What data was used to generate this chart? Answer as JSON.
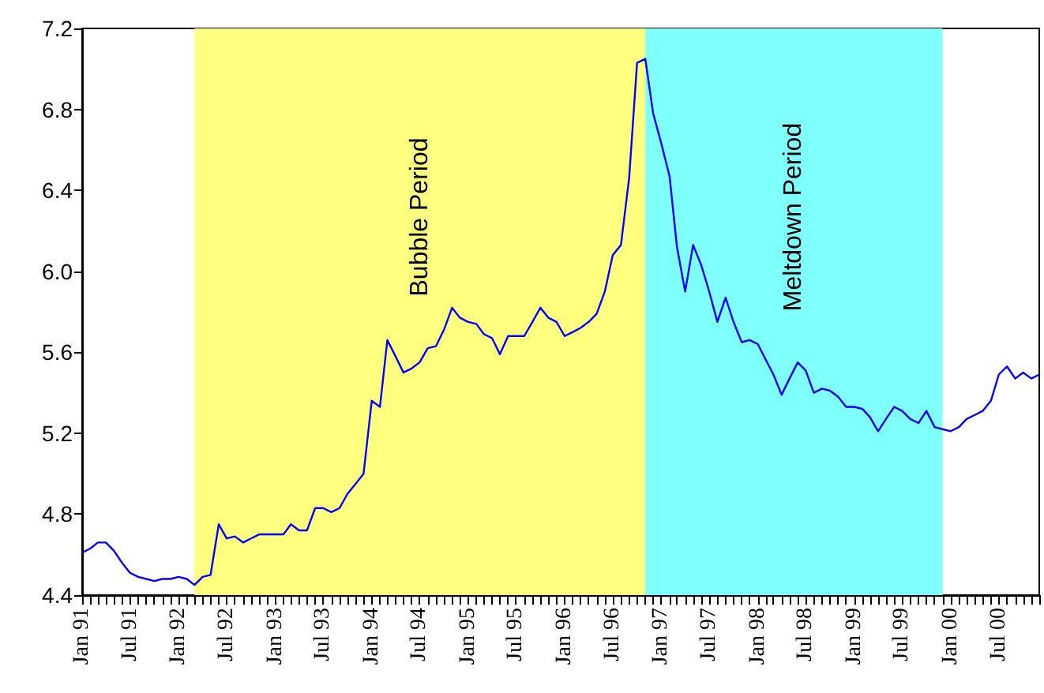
{
  "chart_data": {
    "type": "line",
    "x": [
      "1991-01",
      "1991-02",
      "1991-03",
      "1991-04",
      "1991-05",
      "1991-06",
      "1991-07",
      "1991-08",
      "1991-09",
      "1991-10",
      "1991-11",
      "1991-12",
      "1992-01",
      "1992-02",
      "1992-03",
      "1992-04",
      "1992-05",
      "1992-06",
      "1992-07",
      "1992-08",
      "1992-09",
      "1992-10",
      "1992-11",
      "1992-12",
      "1993-01",
      "1993-02",
      "1993-03",
      "1993-04",
      "1993-05",
      "1993-06",
      "1993-07",
      "1993-08",
      "1993-09",
      "1993-10",
      "1993-11",
      "1993-12",
      "1994-01",
      "1994-02",
      "1994-03",
      "1994-04",
      "1994-05",
      "1994-06",
      "1994-07",
      "1994-08",
      "1994-09",
      "1994-10",
      "1994-11",
      "1994-12",
      "1995-01",
      "1995-02",
      "1995-03",
      "1995-04",
      "1995-05",
      "1995-06",
      "1995-07",
      "1995-08",
      "1995-09",
      "1995-10",
      "1995-11",
      "1995-12",
      "1996-01",
      "1996-02",
      "1996-03",
      "1996-04",
      "1996-05",
      "1996-06",
      "1996-07",
      "1996-08",
      "1996-09",
      "1996-10",
      "1996-11",
      "1996-12",
      "1997-01",
      "1997-02",
      "1997-03",
      "1997-04",
      "1997-05",
      "1997-06",
      "1997-07",
      "1997-08",
      "1997-09",
      "1997-10",
      "1997-11",
      "1997-12",
      "1998-01",
      "1998-02",
      "1998-03",
      "1998-04",
      "1998-05",
      "1998-06",
      "1998-07",
      "1998-08",
      "1998-09",
      "1998-10",
      "1998-11",
      "1998-12",
      "1999-01",
      "1999-02",
      "1999-03",
      "1999-04",
      "1999-05",
      "1999-06",
      "1999-07",
      "1999-08",
      "1999-09",
      "1999-10",
      "1999-11",
      "1999-12",
      "2000-01",
      "2000-02",
      "2000-03",
      "2000-04",
      "2000-05",
      "2000-06",
      "2000-07",
      "2000-08",
      "2000-09",
      "2000-10",
      "2000-11",
      "2000-12"
    ],
    "series": [
      {
        "color": "#0000ff",
        "values": [
          4.61,
          4.63,
          4.66,
          4.66,
          4.62,
          4.56,
          4.51,
          4.49,
          4.48,
          4.47,
          4.48,
          4.48,
          4.49,
          4.48,
          4.45,
          4.49,
          4.5,
          4.75,
          4.68,
          4.69,
          4.66,
          4.68,
          4.7,
          4.7,
          4.7,
          4.7,
          4.75,
          4.72,
          4.72,
          4.83,
          4.83,
          4.81,
          4.83,
          4.9,
          4.95,
          5.0,
          5.36,
          5.33,
          5.66,
          5.58,
          5.5,
          5.52,
          5.55,
          5.62,
          5.63,
          5.71,
          5.82,
          5.77,
          5.75,
          5.74,
          5.69,
          5.67,
          5.59,
          5.68,
          5.68,
          5.68,
          5.75,
          5.82,
          5.77,
          5.75,
          5.68,
          5.7,
          5.72,
          5.75,
          5.79,
          5.9,
          6.08,
          6.13,
          6.46,
          7.03,
          7.05,
          6.78,
          6.63,
          6.47,
          6.12,
          5.9,
          6.13,
          6.03,
          5.9,
          5.75,
          5.87,
          5.75,
          5.65,
          5.66,
          5.64,
          5.56,
          5.49,
          5.39,
          5.47,
          5.55,
          5.51,
          5.4,
          5.42,
          5.41,
          5.38,
          5.33,
          5.33,
          5.32,
          5.28,
          5.21,
          5.27,
          5.33,
          5.31,
          5.27,
          5.25,
          5.31,
          5.23,
          5.22,
          5.21,
          5.23,
          5.27,
          5.29,
          5.31,
          5.36,
          5.49,
          5.53,
          5.47,
          5.5,
          5.47,
          5.49
        ]
      }
    ],
    "xlim": [
      "1991-01",
      "2000-12"
    ],
    "xticks": [
      {
        "value": "1991-01",
        "label": "Jan 91"
      },
      {
        "value": "1991-02",
        "label": null
      },
      {
        "value": "1991-03",
        "label": null
      },
      {
        "value": "1991-04",
        "label": null
      },
      {
        "value": "1991-05",
        "label": null
      },
      {
        "value": "1991-06",
        "label": null
      },
      {
        "value": "1991-07",
        "label": "Jul 91"
      },
      {
        "value": "1991-08",
        "label": null
      },
      {
        "value": "1991-09",
        "label": null
      },
      {
        "value": "1991-10",
        "label": null
      },
      {
        "value": "1991-11",
        "label": null
      },
      {
        "value": "1991-12",
        "label": null
      },
      {
        "value": "1992-01",
        "label": "Jan 92"
      },
      {
        "value": "1992-02",
        "label": null
      },
      {
        "value": "1992-03",
        "label": null
      },
      {
        "value": "1992-04",
        "label": null
      },
      {
        "value": "1992-05",
        "label": null
      },
      {
        "value": "1992-06",
        "label": null
      },
      {
        "value": "1992-07",
        "label": "Jul 92"
      },
      {
        "value": "1992-08",
        "label": null
      },
      {
        "value": "1992-09",
        "label": null
      },
      {
        "value": "1992-10",
        "label": null
      },
      {
        "value": "1992-11",
        "label": null
      },
      {
        "value": "1992-12",
        "label": null
      },
      {
        "value": "1993-01",
        "label": "Jan 93"
      },
      {
        "value": "1993-02",
        "label": null
      },
      {
        "value": "1993-03",
        "label": null
      },
      {
        "value": "1993-04",
        "label": null
      },
      {
        "value": "1993-05",
        "label": null
      },
      {
        "value": "1993-06",
        "label": null
      },
      {
        "value": "1993-07",
        "label": "Jul 93"
      },
      {
        "value": "1993-08",
        "label": null
      },
      {
        "value": "1993-09",
        "label": null
      },
      {
        "value": "1993-10",
        "label": null
      },
      {
        "value": "1993-11",
        "label": null
      },
      {
        "value": "1993-12",
        "label": null
      },
      {
        "value": "1994-01",
        "label": "Jan 94"
      },
      {
        "value": "1994-02",
        "label": null
      },
      {
        "value": "1994-03",
        "label": null
      },
      {
        "value": "1994-04",
        "label": null
      },
      {
        "value": "1994-05",
        "label": null
      },
      {
        "value": "1994-06",
        "label": null
      },
      {
        "value": "1994-07",
        "label": "Jul 94"
      },
      {
        "value": "1994-08",
        "label": null
      },
      {
        "value": "1994-09",
        "label": null
      },
      {
        "value": "1994-10",
        "label": null
      },
      {
        "value": "1994-11",
        "label": null
      },
      {
        "value": "1994-12",
        "label": null
      },
      {
        "value": "1995-01",
        "label": "Jan 95"
      },
      {
        "value": "1995-02",
        "label": null
      },
      {
        "value": "1995-03",
        "label": null
      },
      {
        "value": "1995-04",
        "label": null
      },
      {
        "value": "1995-05",
        "label": null
      },
      {
        "value": "1995-06",
        "label": null
      },
      {
        "value": "1995-07",
        "label": "Jul 95"
      },
      {
        "value": "1995-08",
        "label": null
      },
      {
        "value": "1995-09",
        "label": null
      },
      {
        "value": "1995-10",
        "label": null
      },
      {
        "value": "1995-11",
        "label": null
      },
      {
        "value": "1995-12",
        "label": null
      },
      {
        "value": "1996-01",
        "label": "Jan 96"
      },
      {
        "value": "1996-02",
        "label": null
      },
      {
        "value": "1996-03",
        "label": null
      },
      {
        "value": "1996-04",
        "label": null
      },
      {
        "value": "1996-05",
        "label": null
      },
      {
        "value": "1996-06",
        "label": null
      },
      {
        "value": "1996-07",
        "label": "Jul 96"
      },
      {
        "value": "1996-08",
        "label": null
      },
      {
        "value": "1996-09",
        "label": null
      },
      {
        "value": "1996-10",
        "label": null
      },
      {
        "value": "1996-11",
        "label": null
      },
      {
        "value": "1996-12",
        "label": null
      },
      {
        "value": "1997-01",
        "label": "Jan 97"
      },
      {
        "value": "1997-02",
        "label": null
      },
      {
        "value": "1997-03",
        "label": null
      },
      {
        "value": "1997-04",
        "label": null
      },
      {
        "value": "1997-05",
        "label": null
      },
      {
        "value": "1997-06",
        "label": null
      },
      {
        "value": "1997-07",
        "label": "Jul 97"
      },
      {
        "value": "1997-08",
        "label": null
      },
      {
        "value": "1997-09",
        "label": null
      },
      {
        "value": "1997-10",
        "label": null
      },
      {
        "value": "1997-11",
        "label": null
      },
      {
        "value": "1997-12",
        "label": null
      },
      {
        "value": "1998-01",
        "label": "Jan 98"
      },
      {
        "value": "1998-02",
        "label": null
      },
      {
        "value": "1998-03",
        "label": null
      },
      {
        "value": "1998-04",
        "label": null
      },
      {
        "value": "1998-05",
        "label": null
      },
      {
        "value": "1998-06",
        "label": null
      },
      {
        "value": "1998-07",
        "label": "Jul 98"
      },
      {
        "value": "1998-08",
        "label": null
      },
      {
        "value": "1998-09",
        "label": null
      },
      {
        "value": "1998-10",
        "label": null
      },
      {
        "value": "1998-11",
        "label": null
      },
      {
        "value": "1998-12",
        "label": null
      },
      {
        "value": "1999-01",
        "label": "Jan 99"
      },
      {
        "value": "1999-02",
        "label": null
      },
      {
        "value": "1999-03",
        "label": null
      },
      {
        "value": "1999-04",
        "label": null
      },
      {
        "value": "1999-05",
        "label": null
      },
      {
        "value": "1999-06",
        "label": null
      },
      {
        "value": "1999-07",
        "label": "Jul 99"
      },
      {
        "value": "1999-08",
        "label": null
      },
      {
        "value": "1999-09",
        "label": null
      },
      {
        "value": "1999-10",
        "label": null
      },
      {
        "value": "1999-11",
        "label": null
      },
      {
        "value": "1999-12",
        "label": null
      },
      {
        "value": "2000-01",
        "label": "Jan 00"
      },
      {
        "value": "2000-02",
        "label": null
      },
      {
        "value": "2000-03",
        "label": null
      },
      {
        "value": "2000-04",
        "label": null
      },
      {
        "value": "2000-05",
        "label": null
      },
      {
        "value": "2000-06",
        "label": null
      },
      {
        "value": "2000-07",
        "label": "Jul 00"
      },
      {
        "value": "2000-08",
        "label": null
      },
      {
        "value": "2000-09",
        "label": null
      },
      {
        "value": "2000-10",
        "label": null
      },
      {
        "value": "2000-11",
        "label": null
      },
      {
        "value": "2000-12",
        "label": null
      }
    ],
    "ylim": [
      4.4,
      7.2
    ],
    "yticks": [
      4.4,
      4.8,
      5.2,
      5.6,
      {
        "value": 6,
        "label": "6.0"
      },
      6.4,
      6.8,
      7.2
    ],
    "bands": [
      {
        "axis": "x",
        "from": "1992-03",
        "to": "1996-11",
        "label": "Bubble Period",
        "color": "#ffff80"
      },
      {
        "axis": "x",
        "from": "1996-11",
        "to": "1999-12",
        "label": "Meltdown Period",
        "color": "#80ffff"
      }
    ],
    "marker": "none"
  }
}
